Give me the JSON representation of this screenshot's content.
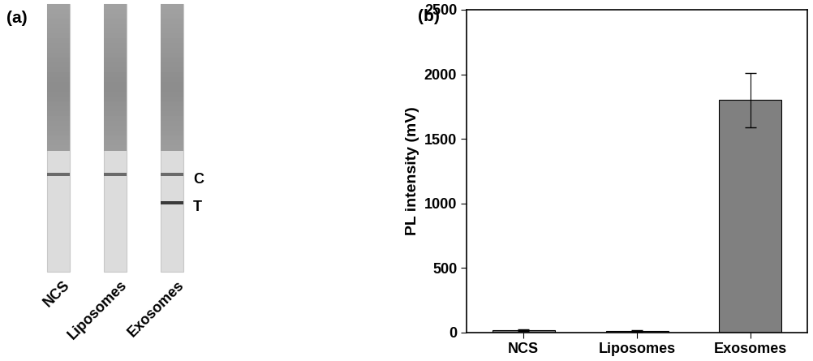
{
  "panel_labels": [
    "(a)",
    "(b)"
  ],
  "strip_panel": {
    "band_labels": [
      "C",
      "T"
    ],
    "strips": [
      {
        "name": "NCS",
        "bands": [
          "C"
        ]
      },
      {
        "name": "Liposomes",
        "bands": [
          "C"
        ]
      },
      {
        "name": "Exosomes",
        "bands": [
          "C",
          "T"
        ]
      }
    ]
  },
  "chart_data": {
    "type": "bar",
    "categories": [
      "NCS",
      "Liposomes",
      "Exosomes"
    ],
    "values": [
      20,
      12,
      1800
    ],
    "errors": [
      8,
      4,
      210
    ],
    "color": "#808080",
    "ylabel": "PL intensity (mV)",
    "ylim": [
      0,
      2500
    ],
    "yticks": [
      0,
      500,
      1000,
      1500,
      2000,
      2500
    ],
    "grid": false
  }
}
